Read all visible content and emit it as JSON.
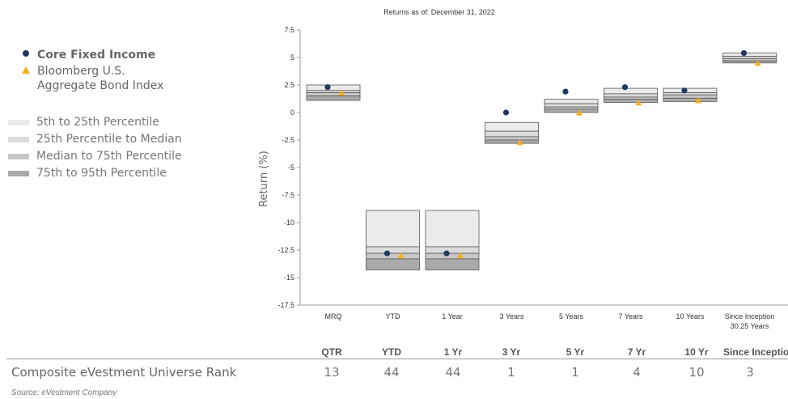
{
  "chart_data": {
    "type": "floating-bar",
    "title": "Returns as of: December 31, 2022",
    "ylabel": "Return (%)",
    "ylim": [
      -17.5,
      7.5
    ],
    "yticks": [
      7.5,
      5,
      2.5,
      0,
      -2.5,
      -5,
      -7.5,
      -10,
      -12.5,
      -15,
      -17.5
    ],
    "ytick_labels": [
      "7.5",
      "5",
      "2.5",
      "0",
      "-2.5",
      "-5",
      "-7.5",
      "-10",
      "-12.5",
      "-15",
      "-17.5"
    ],
    "categories": [
      "MRQ",
      "YTD",
      "1 Year",
      "3 Years",
      "5 Years",
      "7 Years",
      "10 Years",
      "Since Inception\n30.25 Years"
    ],
    "percentile_bands": [
      [
        2.5,
        2.0,
        1.8,
        1.5,
        1.1
      ],
      [
        -8.9,
        -12.2,
        -12.8,
        -13.3,
        -14.3
      ],
      [
        -8.9,
        -12.2,
        -12.8,
        -13.3,
        -14.3
      ],
      [
        -0.9,
        -1.7,
        -2.2,
        -2.5,
        -2.8
      ],
      [
        1.2,
        0.8,
        0.5,
        0.3,
        0.0
      ],
      [
        2.2,
        1.7,
        1.4,
        1.2,
        0.9
      ],
      [
        2.2,
        1.8,
        1.6,
        1.3,
        1.0
      ],
      [
        5.4,
        5.1,
        4.9,
        4.7,
        4.5
      ]
    ],
    "series": [
      {
        "name": "Core Fixed Income",
        "marker": "circle",
        "color": "#1f3a5f",
        "values": [
          2.3,
          -12.8,
          -12.8,
          0.0,
          1.9,
          2.3,
          2.0,
          5.4
        ]
      },
      {
        "name": "Bloomberg U.S. Aggregate Bond Index",
        "marker": "triangle",
        "color": "#f2b01e",
        "values": [
          1.8,
          -13.0,
          -13.0,
          -2.7,
          0.0,
          0.9,
          1.1,
          4.5
        ]
      }
    ],
    "band_colors": [
      "#ebebeb",
      "#dcdcdc",
      "#c8c8c8",
      "#aaaaaa"
    ],
    "grid": false
  },
  "legend": {
    "core": "Core Fixed Income",
    "bench_line1": "Bloomberg U.S.",
    "bench_line2": "Aggregate Bond Index",
    "p1": "5th to 25th Percentile",
    "p2": "25th Percentile to Median",
    "p3": "Median to 75th Percentile",
    "p4": "75th to 95th Percentile"
  },
  "rank_table": {
    "label": "Composite eVestment Universe Rank",
    "headers": [
      "QTR",
      "YTD",
      "1 Yr",
      "3 Yr",
      "5 Yr",
      "7 Yr",
      "10 Yr",
      "Since Inception"
    ],
    "values": [
      "13",
      "44",
      "44",
      "1",
      "1",
      "4",
      "10",
      "3"
    ]
  },
  "source": "Source: eVestment Company"
}
